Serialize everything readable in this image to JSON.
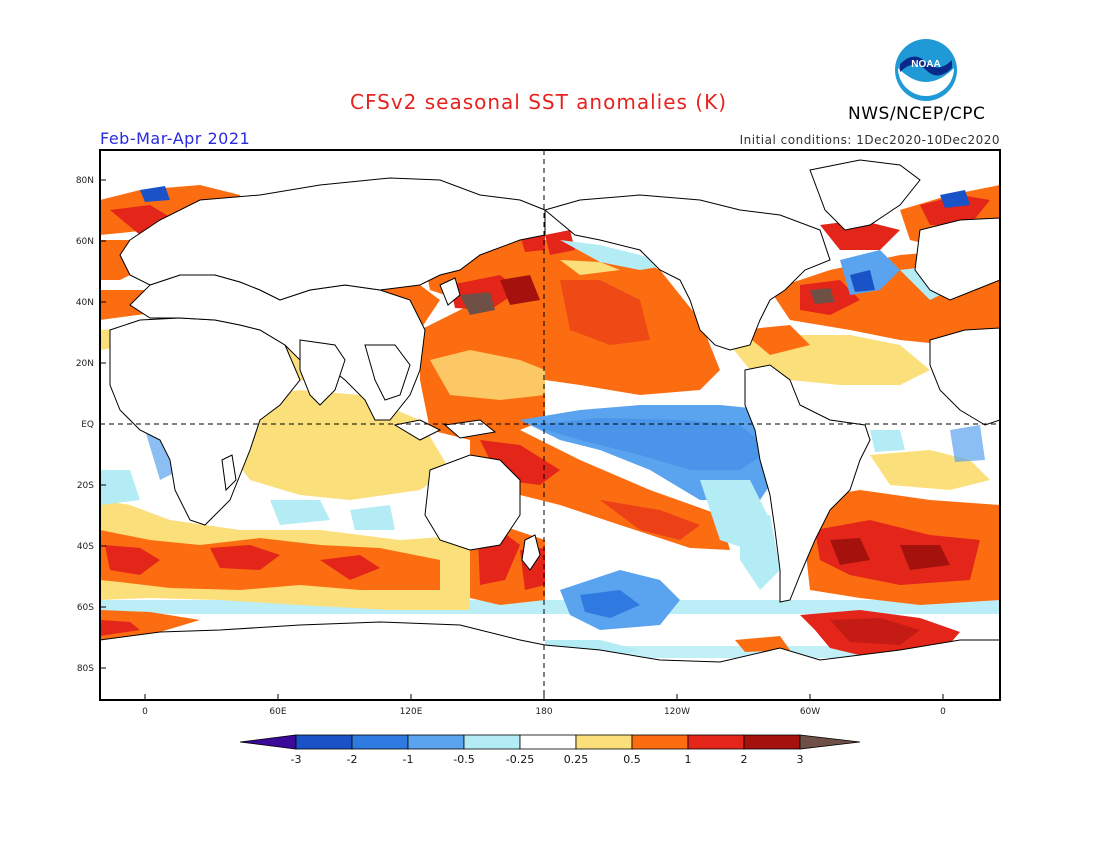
{
  "header": {
    "title": "CFSv2 seasonal SST anomalies (K)",
    "organization": "NWS/NCEP/CPC",
    "logo_text": "NOAA",
    "season": "Feb-Mar-Apr 2021",
    "initial_conditions": "Initial conditions: 1Dec2020-10Dec2020"
  },
  "map": {
    "lat_labels": [
      "80N",
      "60N",
      "40N",
      "20N",
      "EQ",
      "20S",
      "40S",
      "60S",
      "80S"
    ],
    "lon_labels": [
      "0",
      "60E",
      "120E",
      "180",
      "120W",
      "60W",
      "0"
    ]
  },
  "colorbar": {
    "labels": [
      "-3",
      "-2",
      "-1",
      "-0.5",
      "-0.25",
      "0.25",
      "0.5",
      "1",
      "2",
      "3"
    ],
    "colors": {
      "below_-3": "#3a0a9a",
      "-3_to_-2": "#1a52c8",
      "-2_to_-1": "#2f7ae0",
      "-1_to_-0.5": "#5aa3ee",
      "-0.5_to_-0.25": "#b4ecf6",
      "-0.25_to_0.25": "#ffffff",
      "0.25_to_0.5": "#fbdf7a",
      "0.5_to_1": "#fb6d10",
      "1_to_2": "#e3251a",
      "2_to_3": "#a5120e",
      "above_3": "#6e5046"
    }
  }
}
